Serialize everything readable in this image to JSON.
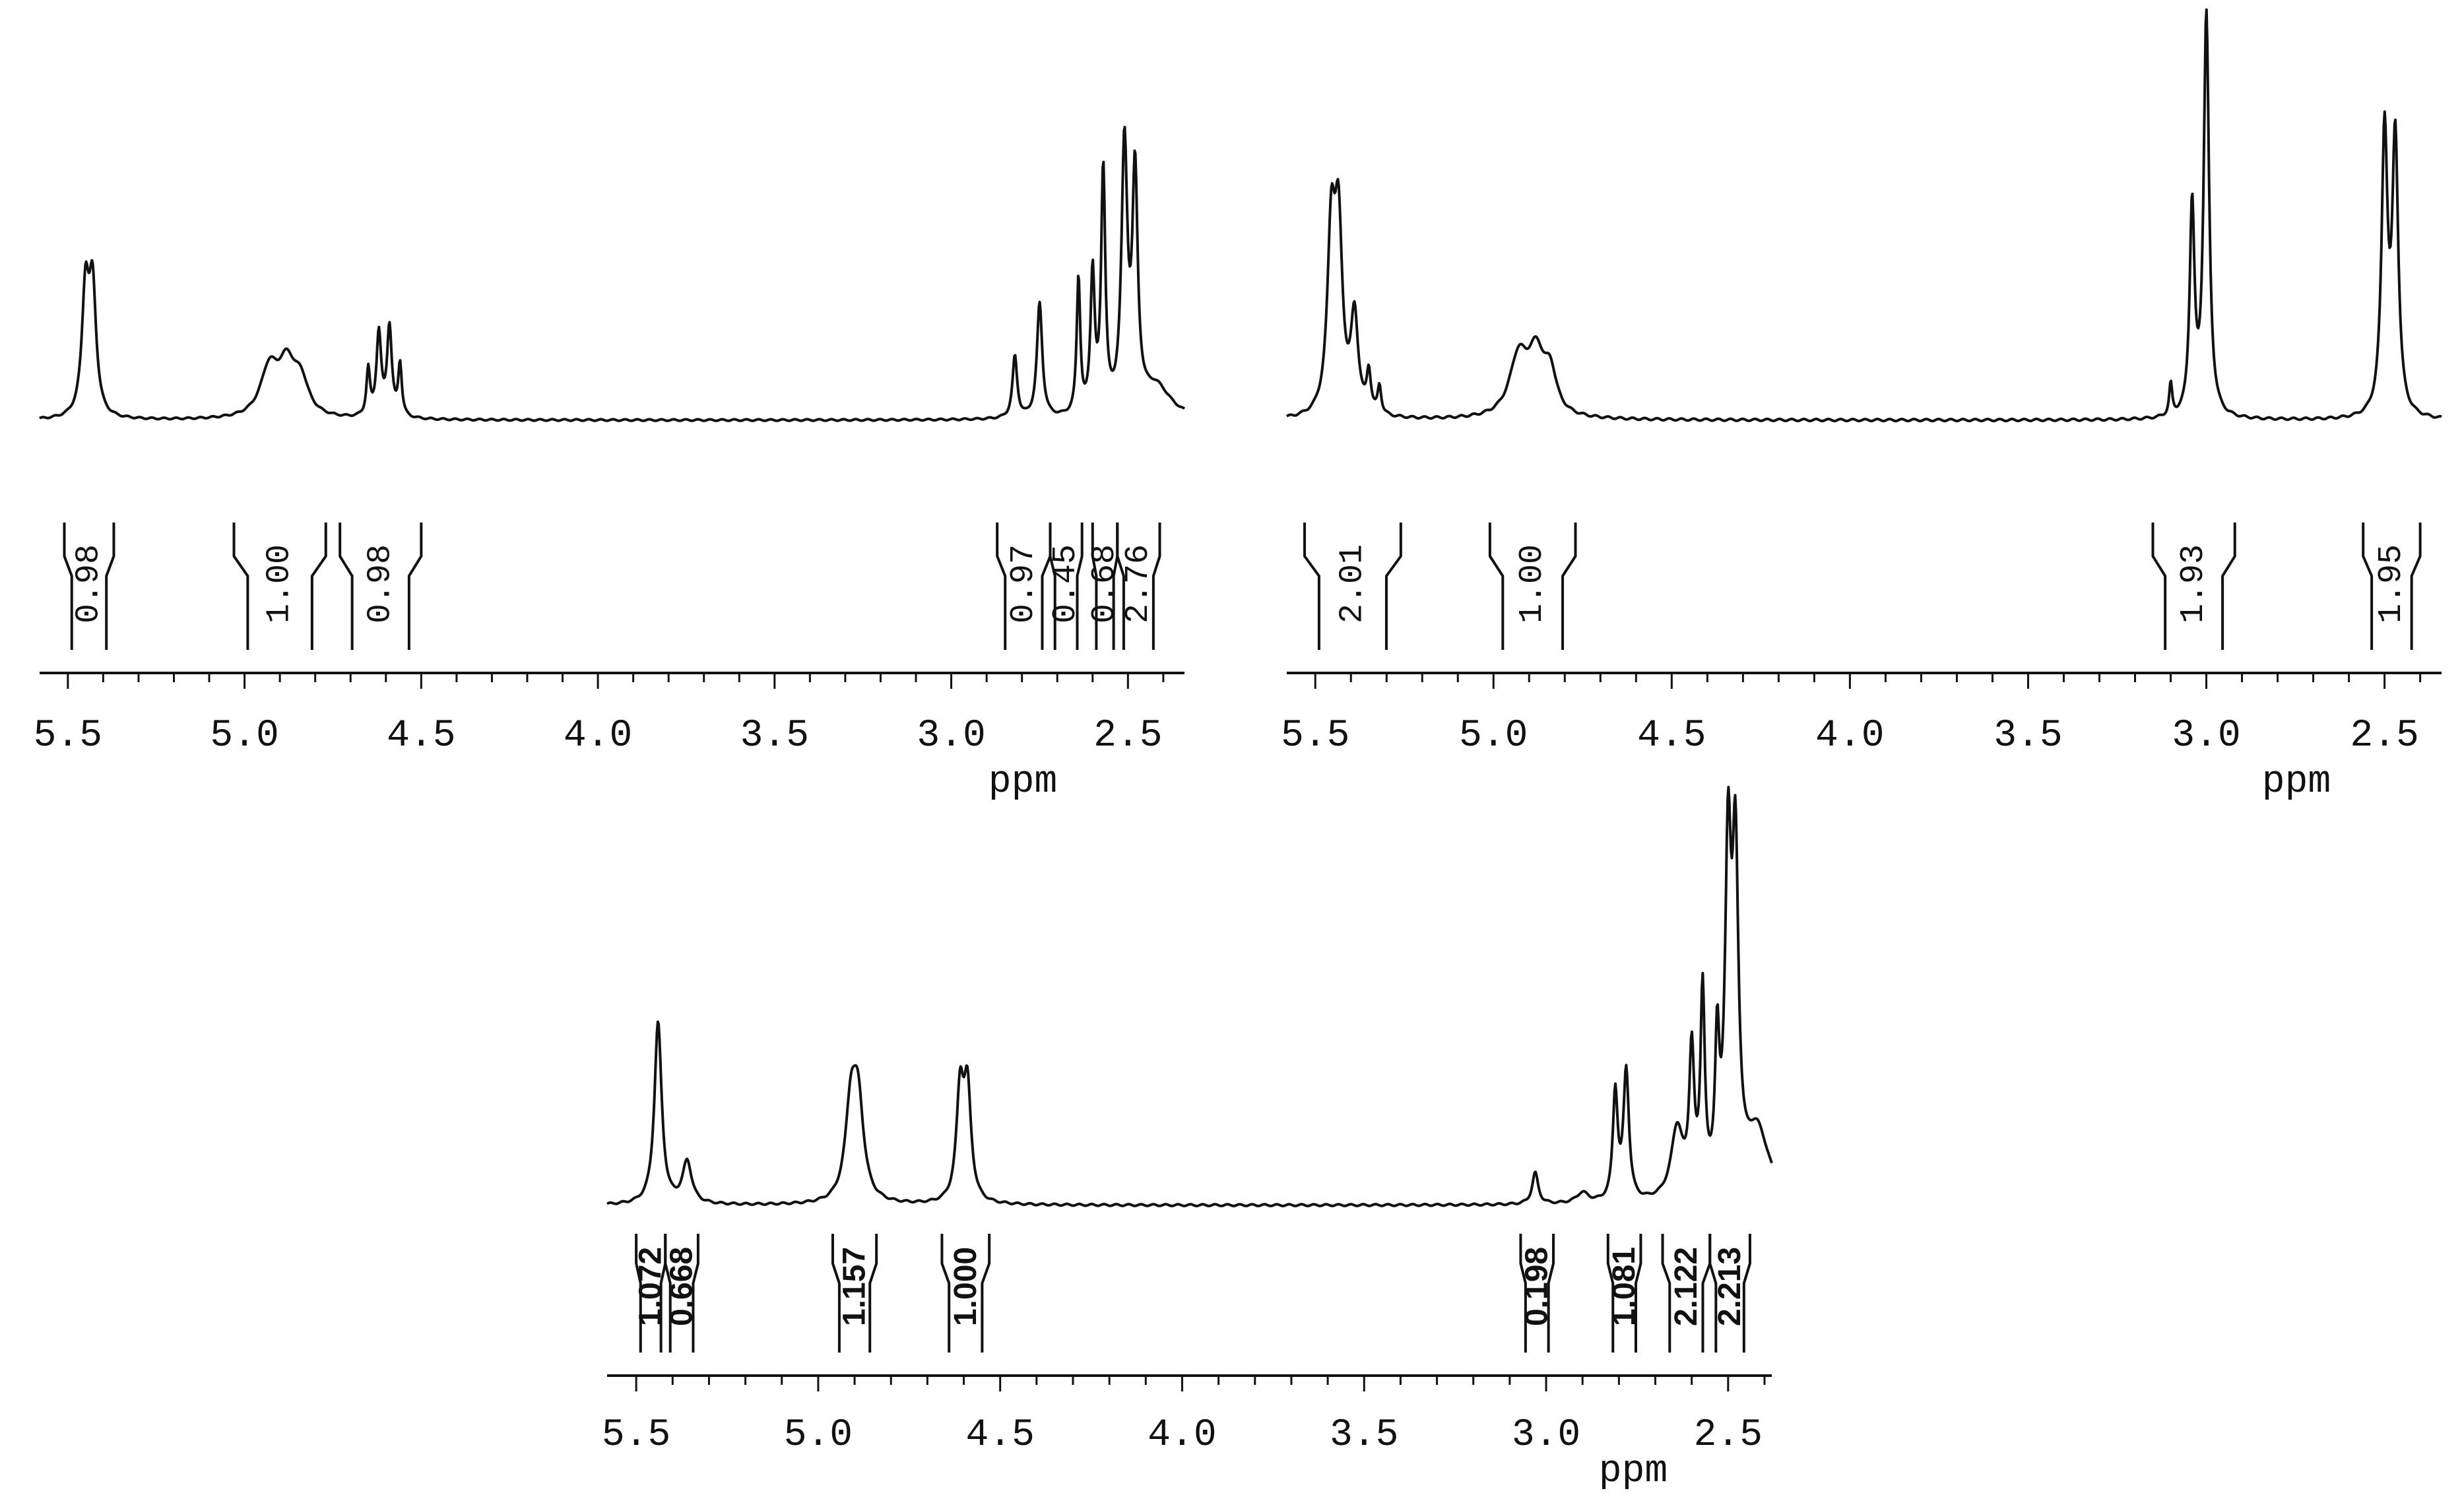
{
  "chart_data": [
    {
      "type": "line",
      "label_style": "mono",
      "xlabel": "ppm",
      "xlim": [
        5.58,
        2.34
      ],
      "x_reversed": true,
      "ticks": [
        5.5,
        5.0,
        4.5,
        4.0,
        3.5,
        3.0,
        2.5
      ],
      "tick_labels": [
        "5.5",
        "5.0",
        "4.5",
        "4.0",
        "3.5",
        "3.0",
        "2.5"
      ],
      "peaks": [
        {
          "x": 5.45,
          "h": 0.4,
          "w": 0.012
        },
        {
          "x": 5.43,
          "h": 0.4,
          "w": 0.012
        },
        {
          "x": 4.93,
          "h": 0.15,
          "w": 0.03
        },
        {
          "x": 4.88,
          "h": 0.16,
          "w": 0.03
        },
        {
          "x": 4.84,
          "h": 0.1,
          "w": 0.025
        },
        {
          "x": 4.65,
          "h": 0.15,
          "w": 0.006
        },
        {
          "x": 4.62,
          "h": 0.27,
          "w": 0.008
        },
        {
          "x": 4.59,
          "h": 0.29,
          "w": 0.008
        },
        {
          "x": 4.56,
          "h": 0.17,
          "w": 0.006
        },
        {
          "x": 2.82,
          "h": 0.2,
          "w": 0.008
        },
        {
          "x": 2.75,
          "h": 0.37,
          "w": 0.009
        },
        {
          "x": 2.64,
          "h": 0.44,
          "w": 0.006
        },
        {
          "x": 2.6,
          "h": 0.45,
          "w": 0.007
        },
        {
          "x": 2.57,
          "h": 0.78,
          "w": 0.007
        },
        {
          "x": 2.51,
          "h": 0.85,
          "w": 0.01
        },
        {
          "x": 2.48,
          "h": 0.74,
          "w": 0.009
        },
        {
          "x": 2.42,
          "h": 0.1,
          "w": 0.05
        }
      ],
      "integrals": [
        {
          "value": "0.98",
          "from": 5.51,
          "to": 5.37
        },
        {
          "value": "1.00",
          "from": 5.03,
          "to": 4.77
        },
        {
          "value": "0.98",
          "from": 4.73,
          "to": 4.5
        },
        {
          "value": "0.97",
          "from": 2.87,
          "to": 2.72
        },
        {
          "value": "0.45",
          "from": 2.72,
          "to": 2.63
        },
        {
          "value": "0.68",
          "from": 2.6,
          "to": 2.53
        },
        {
          "value": "2.76",
          "from": 2.53,
          "to": 2.41
        }
      ]
    },
    {
      "type": "line",
      "label_style": "mono",
      "xlabel": "ppm",
      "xlim": [
        5.58,
        2.34
      ],
      "x_reversed": true,
      "ticks": [
        5.5,
        5.0,
        4.5,
        4.0,
        3.5,
        3.0,
        2.5
      ],
      "tick_labels": [
        "5.5",
        "5.0",
        "4.5",
        "4.0",
        "3.5",
        "3.0",
        "2.5"
      ],
      "peaks": [
        {
          "x": 5.455,
          "h": 0.44,
          "w": 0.013
        },
        {
          "x": 5.435,
          "h": 0.44,
          "w": 0.013
        },
        {
          "x": 5.39,
          "h": 0.24,
          "w": 0.012
        },
        {
          "x": 5.35,
          "h": 0.1,
          "w": 0.007
        },
        {
          "x": 5.32,
          "h": 0.07,
          "w": 0.006
        },
        {
          "x": 4.93,
          "h": 0.14,
          "w": 0.03
        },
        {
          "x": 4.88,
          "h": 0.15,
          "w": 0.03
        },
        {
          "x": 4.84,
          "h": 0.09,
          "w": 0.02
        },
        {
          "x": 3.1,
          "h": 0.08,
          "w": 0.005
        },
        {
          "x": 3.04,
          "h": 0.52,
          "w": 0.008
        },
        {
          "x": 3.0,
          "h": 1.0,
          "w": 0.009
        },
        {
          "x": 2.5,
          "h": 0.7,
          "w": 0.01
        },
        {
          "x": 2.47,
          "h": 0.68,
          "w": 0.01
        }
      ],
      "integrals": [
        {
          "value": "2.01",
          "from": 5.53,
          "to": 5.26
        },
        {
          "value": "1.00",
          "from": 5.01,
          "to": 4.77
        },
        {
          "value": "1.93",
          "from": 3.15,
          "to": 2.92
        },
        {
          "value": "1.95",
          "from": 2.56,
          "to": 2.4
        }
      ]
    },
    {
      "type": "line",
      "label_style": "sans",
      "xlabel": "ppm",
      "xlim": [
        5.58,
        2.38
      ],
      "x_reversed": true,
      "ticks": [
        5.5,
        5.0,
        4.5,
        4.0,
        3.5,
        3.0,
        2.5
      ],
      "tick_labels": [
        "5.5",
        "5.0",
        "4.5",
        "4.0",
        "3.5",
        "3.0",
        "2.5"
      ],
      "peaks": [
        {
          "x": 5.44,
          "h": 0.52,
          "w": 0.012
        },
        {
          "x": 5.36,
          "h": 0.12,
          "w": 0.015
        },
        {
          "x": 4.91,
          "h": 0.26,
          "w": 0.018
        },
        {
          "x": 4.89,
          "h": 0.26,
          "w": 0.018
        },
        {
          "x": 4.61,
          "h": 0.31,
          "w": 0.012
        },
        {
          "x": 4.59,
          "h": 0.31,
          "w": 0.012
        },
        {
          "x": 3.03,
          "h": 0.09,
          "w": 0.01
        },
        {
          "x": 2.9,
          "h": 0.03,
          "w": 0.02
        },
        {
          "x": 2.81,
          "h": 0.31,
          "w": 0.008
        },
        {
          "x": 2.78,
          "h": 0.37,
          "w": 0.009
        },
        {
          "x": 2.64,
          "h": 0.2,
          "w": 0.02
        },
        {
          "x": 2.6,
          "h": 0.4,
          "w": 0.008
        },
        {
          "x": 2.57,
          "h": 0.57,
          "w": 0.007
        },
        {
          "x": 2.53,
          "h": 0.4,
          "w": 0.007
        },
        {
          "x": 2.5,
          "h": 0.94,
          "w": 0.01
        },
        {
          "x": 2.48,
          "h": 0.9,
          "w": 0.01
        },
        {
          "x": 2.42,
          "h": 0.2,
          "w": 0.04
        }
      ],
      "integrals": [
        {
          "value": "1.072",
          "from": 5.5,
          "to": 5.42
        },
        {
          "value": "0.668",
          "from": 5.42,
          "to": 5.33
        },
        {
          "value": "1.157",
          "from": 4.96,
          "to": 4.84
        },
        {
          "value": "1.000",
          "from": 4.66,
          "to": 4.53
        },
        {
          "value": "0.198",
          "from": 3.07,
          "to": 2.98
        },
        {
          "value": "1.081",
          "from": 2.83,
          "to": 2.74
        },
        {
          "value": "2.122",
          "from": 2.68,
          "to": 2.55
        },
        {
          "value": "2.213",
          "from": 2.55,
          "to": 2.44
        }
      ]
    }
  ]
}
